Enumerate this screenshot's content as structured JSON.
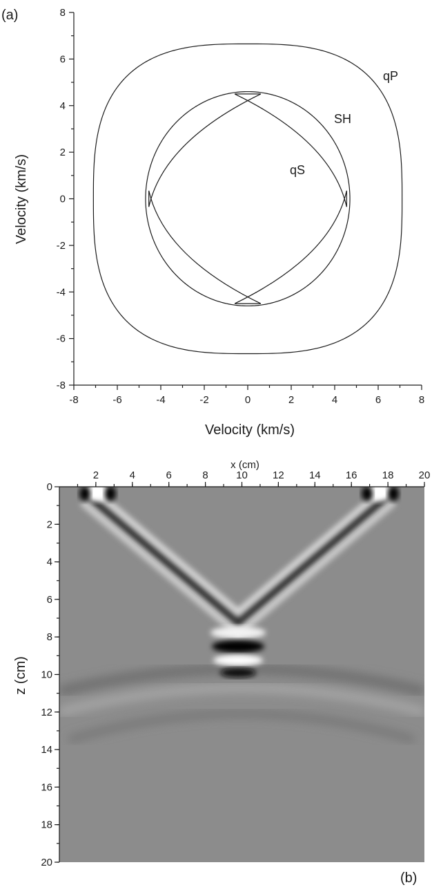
{
  "chart_data": [
    {
      "panel": "(a)",
      "type": "line",
      "xlabel": "Velocity (km/s)",
      "ylabel": "Velocity (km/s)",
      "xlim": [
        -8,
        8
      ],
      "ylim": [
        -8,
        8
      ],
      "xticks": [
        "-8",
        "-6",
        "-4",
        "-2",
        "0",
        "2",
        "4",
        "6",
        "8"
      ],
      "yticks": [
        "-8",
        "-6",
        "-4",
        "-2",
        "0",
        "2",
        "4",
        "6",
        "8"
      ],
      "series": [
        {
          "name": "qP",
          "shape": "superellipse",
          "a": 7.1,
          "b": 6.65,
          "exponent": 2.9
        },
        {
          "name": "SH",
          "shape": "ellipse",
          "a": 4.7,
          "b": 4.6
        },
        {
          "name": "qS",
          "shape": "lens",
          "x_extent": 4.55,
          "y_extent": 4.5,
          "cusp_half_width": 0.6,
          "cusp_half_height": 0.35
        }
      ]
    },
    {
      "panel": "(b)",
      "type": "heatmap",
      "xlabel": "x (cm)",
      "ylabel": "z (cm)",
      "xlim": [
        0,
        20
      ],
      "ylim": [
        20,
        0
      ],
      "xticks": [
        "2",
        "4",
        "6",
        "8",
        "10",
        "12",
        "14",
        "16",
        "18",
        "20"
      ],
      "yticks": [
        "0",
        "2",
        "4",
        "6",
        "8",
        "10",
        "12",
        "14",
        "16",
        "18",
        "20"
      ],
      "colormap": "gray",
      "background": "#8c8c8c"
    }
  ]
}
